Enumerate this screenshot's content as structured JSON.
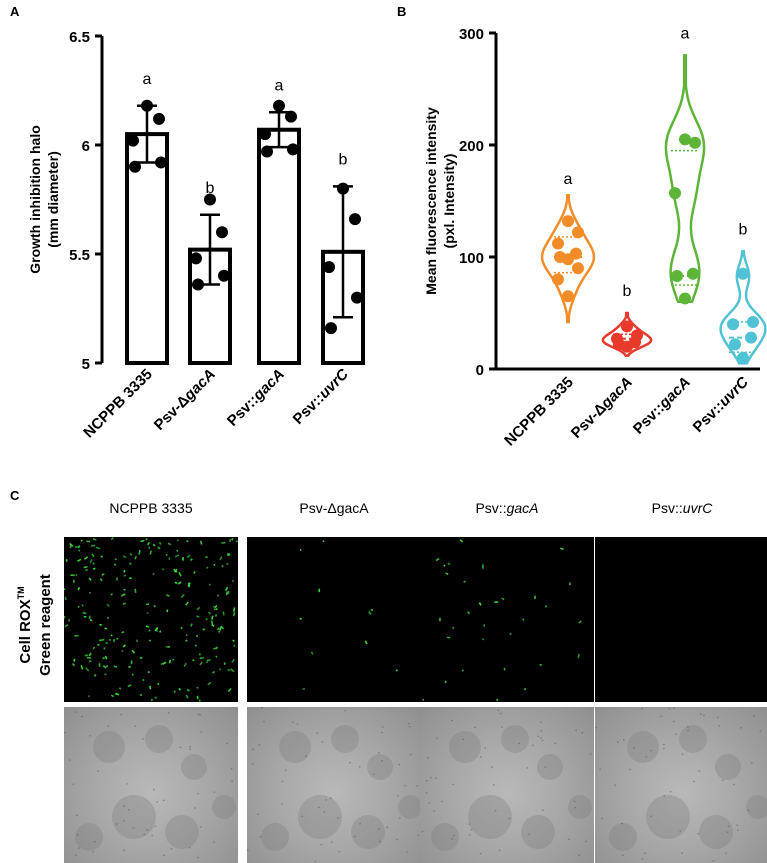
{
  "panels": {
    "a": {
      "letter": "A"
    },
    "b": {
      "letter": "B"
    },
    "c": {
      "letter": "C"
    }
  },
  "chart_data": [
    {
      "type": "bar",
      "categories": [
        "NCPPB 3335",
        "Psv-ΔgacA",
        "Psv::gacA",
        "Psv::uvrC"
      ],
      "category_parts": [
        [
          {
            "t": "NCPPB 3335",
            "i": false
          }
        ],
        [
          {
            "t": "Psv-Δ",
            "i": false
          },
          {
            "t": "gacA",
            "i": true
          }
        ],
        [
          {
            "t": "Psv::",
            "i": false
          },
          {
            "t": "gacA",
            "i": true
          }
        ],
        [
          {
            "t": "Psv::",
            "i": false
          },
          {
            "t": "uvrC",
            "i": true
          }
        ]
      ],
      "values": [
        6.05,
        5.52,
        6.07,
        5.51
      ],
      "errors": [
        0.13,
        0.16,
        0.08,
        0.3
      ],
      "points": [
        [
          6.18,
          6.12,
          6.02,
          5.92,
          5.9
        ],
        [
          5.75,
          5.6,
          5.48,
          5.4,
          5.36
        ],
        [
          6.18,
          6.13,
          6.05,
          5.98,
          5.97
        ],
        [
          5.8,
          5.66,
          5.44,
          5.3,
          5.16
        ]
      ],
      "letters": [
        "a",
        "b",
        "a",
        "b"
      ],
      "ylabel_line1": "Growth inhibition halo",
      "ylabel_line2": "(mm diameter)",
      "ylim": [
        5.0,
        6.5
      ],
      "yticks": [
        "5",
        "5.5",
        "6",
        "6.5"
      ],
      "ytick_values": [
        5.0,
        5.5,
        6.0,
        6.5
      ],
      "bar_fill": "#ffffff",
      "bar_stroke": "#000000"
    },
    {
      "type": "violin",
      "categories": [
        "NCPPB 3335",
        "Psv-ΔgacA",
        "Psv::gacA",
        "Psv::uvrC"
      ],
      "category_parts": [
        [
          {
            "t": "NCPPB 3335",
            "i": false
          }
        ],
        [
          {
            "t": "Psv-Δ",
            "i": false
          },
          {
            "t": "gacA",
            "i": true
          }
        ],
        [
          {
            "t": "Psv::",
            "i": false
          },
          {
            "t": "gacA",
            "i": true
          }
        ],
        [
          {
            "t": "Psv::",
            "i": false
          },
          {
            "t": "uvrC",
            "i": true
          }
        ]
      ],
      "series": [
        {
          "color": "#f28c28",
          "points": [
            132,
            122,
            112,
            103,
            100,
            98,
            90,
            80,
            65
          ],
          "range": [
            42,
            155
          ],
          "quartiles": [
            86,
            100,
            118
          ]
        },
        {
          "color": "#e8392b",
          "points": [
            38,
            30,
            27,
            24,
            22,
            20
          ],
          "range": [
            12,
            50
          ],
          "quartiles": [
            22,
            27,
            31
          ]
        },
        {
          "color": "#5cb536",
          "points": [
            205,
            202,
            157,
            85,
            83,
            63
          ],
          "range": [
            60,
            280
          ],
          "quartiles": [
            75,
            83,
            195
          ]
        },
        {
          "color": "#4fc3d4",
          "points": [
            85,
            42,
            40,
            28,
            22,
            10
          ],
          "range": [
            5,
            105
          ],
          "quartiles": [
            15,
            28,
            42
          ]
        }
      ],
      "letters": [
        "a",
        "b",
        "a",
        "b"
      ],
      "letter_y": [
        165,
        65,
        295,
        120
      ],
      "ylabel_line1": "Mean fluorescence intensity",
      "ylabel_line2": "(pxl. Intensity)",
      "ylim": [
        0,
        300
      ],
      "yticks": [
        "0",
        "100",
        "200",
        "300"
      ],
      "ytick_values": [
        0,
        100,
        200,
        300
      ]
    }
  ],
  "microscopy": {
    "columns": [
      [
        {
          "t": "NCPPB 3335",
          "i": false
        }
      ],
      [
        {
          "t": "Psv-ΔgacA",
          "i": false
        }
      ],
      [
        {
          "t": "Psv::",
          "i": false
        },
        {
          "t": "gacA",
          "i": true
        }
      ],
      [
        {
          "t": "Psv::",
          "i": false
        },
        {
          "t": "uvrC",
          "i": true
        }
      ]
    ],
    "row_label_main": "Cell ROX",
    "row_label_sup": "TM",
    "row_label_line2": "Green reagent",
    "cell_density": [
      0.9,
      0.04,
      0.12,
      0.0
    ],
    "cell_color": "#3ddc3d"
  }
}
